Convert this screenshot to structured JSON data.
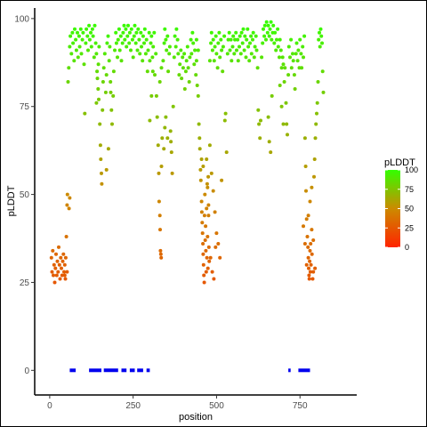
{
  "chart_data": {
    "type": "scatter",
    "title": "",
    "xlabel": "position",
    "ylabel": "pLDDT",
    "xlim": [
      -45,
      920
    ],
    "ylim": [
      -7,
      103
    ],
    "x_ticks": [
      0,
      250,
      500,
      750
    ],
    "x_tick_labels": [
      "0",
      "250",
      "500",
      "750"
    ],
    "y_ticks": [
      0,
      25,
      50,
      75,
      100
    ],
    "y_tick_labels": [
      "0",
      "25",
      "50",
      "75",
      "100"
    ],
    "grid": false,
    "legend": {
      "title": "pLDDT",
      "position": "right",
      "ticks": [
        0,
        25,
        50,
        75,
        100
      ],
      "tick_labels": [
        "0",
        "25",
        "50",
        "75",
        "100"
      ],
      "color_low": "#ff2400",
      "color_mid": "#cc8a00",
      "color_high": "#33ff00"
    },
    "points": [
      [
        5,
        32
      ],
      [
        7,
        28
      ],
      [
        9,
        34
      ],
      [
        11,
        27
      ],
      [
        13,
        30
      ],
      [
        15,
        25
      ],
      [
        17,
        29
      ],
      [
        19,
        33
      ],
      [
        21,
        27
      ],
      [
        23,
        31
      ],
      [
        25,
        28
      ],
      [
        27,
        35
      ],
      [
        29,
        30
      ],
      [
        31,
        26
      ],
      [
        33,
        32
      ],
      [
        35,
        29
      ],
      [
        37,
        27
      ],
      [
        39,
        31
      ],
      [
        41,
        33
      ],
      [
        43,
        28
      ],
      [
        45,
        30
      ],
      [
        47,
        26
      ],
      [
        50,
        38
      ],
      [
        52,
        47
      ],
      [
        53,
        50
      ],
      [
        55,
        82
      ],
      [
        57,
        86
      ],
      [
        60,
        92
      ],
      [
        62,
        95
      ],
      [
        65,
        90
      ],
      [
        68,
        96
      ],
      [
        70,
        93
      ],
      [
        73,
        88
      ],
      [
        75,
        97
      ],
      [
        78,
        94
      ],
      [
        80,
        91
      ],
      [
        83,
        96
      ],
      [
        85,
        89
      ],
      [
        88,
        95
      ],
      [
        90,
        92
      ],
      [
        93,
        97
      ],
      [
        95,
        90
      ],
      [
        98,
        94
      ],
      [
        100,
        96
      ],
      [
        103,
        87
      ],
      [
        105,
        73
      ],
      [
        108,
        93
      ],
      [
        110,
        97
      ],
      [
        113,
        95
      ],
      [
        115,
        91
      ],
      [
        118,
        98
      ],
      [
        120,
        94
      ],
      [
        123,
        96
      ],
      [
        125,
        92
      ],
      [
        128,
        97
      ],
      [
        130,
        95
      ],
      [
        133,
        89
      ],
      [
        135,
        98
      ],
      [
        138,
        93
      ],
      [
        140,
        90
      ],
      [
        142,
        85
      ],
      [
        145,
        80
      ],
      [
        147,
        77
      ],
      [
        150,
        70
      ],
      [
        152,
        64
      ],
      [
        153,
        60
      ],
      [
        155,
        56
      ],
      [
        156,
        53
      ],
      [
        158,
        74
      ],
      [
        160,
        82
      ],
      [
        162,
        86
      ],
      [
        165,
        90
      ],
      [
        168,
        79
      ],
      [
        170,
        84
      ],
      [
        172,
        93
      ],
      [
        175,
        95
      ],
      [
        178,
        88
      ],
      [
        180,
        92
      ],
      [
        182,
        82
      ],
      [
        185,
        74
      ],
      [
        187,
        70
      ],
      [
        190,
        78
      ],
      [
        192,
        85
      ],
      [
        195,
        91
      ],
      [
        198,
        96
      ],
      [
        200,
        93
      ],
      [
        203,
        89
      ],
      [
        205,
        94
      ],
      [
        208,
        97
      ],
      [
        210,
        91
      ],
      [
        213,
        95
      ],
      [
        215,
        88
      ],
      [
        218,
        93
      ],
      [
        220,
        96
      ],
      [
        223,
        98
      ],
      [
        225,
        94
      ],
      [
        228,
        97
      ],
      [
        230,
        92
      ],
      [
        233,
        95
      ],
      [
        235,
        98
      ],
      [
        238,
        93
      ],
      [
        240,
        96
      ],
      [
        243,
        91
      ],
      [
        245,
        97
      ],
      [
        248,
        94
      ],
      [
        250,
        89
      ],
      [
        253,
        95
      ],
      [
        255,
        98
      ],
      [
        258,
        93
      ],
      [
        260,
        96
      ],
      [
        263,
        91
      ],
      [
        265,
        97
      ],
      [
        268,
        94
      ],
      [
        270,
        90
      ],
      [
        273,
        96
      ],
      [
        275,
        92
      ],
      [
        278,
        88
      ],
      [
        280,
        95
      ],
      [
        283,
        93
      ],
      [
        285,
        97
      ],
      [
        288,
        90
      ],
      [
        290,
        94
      ],
      [
        293,
        85
      ],
      [
        295,
        91
      ],
      [
        298,
        96
      ],
      [
        300,
        88
      ],
      [
        303,
        93
      ],
      [
        305,
        95
      ],
      [
        308,
        89
      ],
      [
        310,
        92
      ],
      [
        313,
        96
      ],
      [
        315,
        84
      ],
      [
        318,
        90
      ],
      [
        320,
        78
      ],
      [
        322,
        72
      ],
      [
        325,
        64
      ],
      [
        327,
        56
      ],
      [
        328,
        48
      ],
      [
        330,
        44
      ],
      [
        331,
        40
      ],
      [
        332,
        34
      ],
      [
        333,
        33
      ],
      [
        334,
        32
      ],
      [
        335,
        58
      ],
      [
        337,
        66
      ],
      [
        340,
        88
      ],
      [
        343,
        93
      ],
      [
        345,
        97
      ],
      [
        348,
        94
      ],
      [
        350,
        91
      ],
      [
        353,
        95
      ],
      [
        355,
        85
      ],
      [
        358,
        90
      ],
      [
        360,
        92
      ],
      [
        362,
        68
      ],
      [
        363,
        65
      ],
      [
        365,
        62
      ],
      [
        367,
        56
      ],
      [
        370,
        75
      ],
      [
        373,
        89
      ],
      [
        375,
        95
      ],
      [
        378,
        92
      ],
      [
        380,
        97
      ],
      [
        383,
        94
      ],
      [
        385,
        90
      ],
      [
        388,
        84
      ],
      [
        390,
        87
      ],
      [
        393,
        91
      ],
      [
        395,
        83
      ],
      [
        398,
        89
      ],
      [
        400,
        86
      ],
      [
        403,
        90
      ],
      [
        405,
        80
      ],
      [
        408,
        85
      ],
      [
        410,
        88
      ],
      [
        413,
        92
      ],
      [
        415,
        86
      ],
      [
        418,
        82
      ],
      [
        420,
        89
      ],
      [
        423,
        94
      ],
      [
        425,
        90
      ],
      [
        428,
        96
      ],
      [
        430,
        93
      ],
      [
        433,
        87
      ],
      [
        435,
        91
      ],
      [
        438,
        84
      ],
      [
        440,
        88
      ],
      [
        442,
        81
      ],
      [
        445,
        78
      ],
      [
        447,
        70
      ],
      [
        449,
        66
      ],
      [
        450,
        63
      ],
      [
        452,
        57
      ],
      [
        453,
        54
      ],
      [
        455,
        48
      ],
      [
        456,
        45
      ],
      [
        457,
        42
      ],
      [
        458,
        39
      ],
      [
        459,
        36
      ],
      [
        460,
        33
      ],
      [
        461,
        30
      ],
      [
        462,
        27
      ],
      [
        463,
        25
      ],
      [
        464,
        44
      ],
      [
        465,
        50
      ],
      [
        466,
        37
      ],
      [
        467,
        41
      ],
      [
        468,
        34
      ],
      [
        469,
        28
      ],
      [
        470,
        46
      ],
      [
        471,
        32
      ],
      [
        472,
        53
      ],
      [
        473,
        38
      ],
      [
        474,
        29
      ],
      [
        475,
        55
      ],
      [
        476,
        47
      ],
      [
        477,
        35
      ],
      [
        478,
        31
      ],
      [
        480,
        88
      ],
      [
        483,
        93
      ],
      [
        485,
        96
      ],
      [
        488,
        91
      ],
      [
        490,
        94
      ],
      [
        493,
        88
      ],
      [
        495,
        92
      ],
      [
        498,
        95
      ],
      [
        500,
        90
      ],
      [
        503,
        86
      ],
      [
        505,
        93
      ],
      [
        508,
        96
      ],
      [
        510,
        89
      ],
      [
        513,
        94
      ],
      [
        515,
        91
      ],
      [
        518,
        85
      ],
      [
        520,
        92
      ],
      [
        523,
        95
      ],
      [
        525,
        71
      ],
      [
        527,
        73
      ],
      [
        530,
        62
      ],
      [
        533,
        90
      ],
      [
        535,
        94
      ],
      [
        538,
        96
      ],
      [
        540,
        91
      ],
      [
        543,
        94
      ],
      [
        545,
        88
      ],
      [
        548,
        92
      ],
      [
        550,
        95
      ],
      [
        553,
        90
      ],
      [
        555,
        94
      ],
      [
        558,
        96
      ],
      [
        560,
        91
      ],
      [
        563,
        94
      ],
      [
        565,
        88
      ],
      [
        568,
        92
      ],
      [
        570,
        95
      ],
      [
        573,
        90
      ],
      [
        575,
        96
      ],
      [
        578,
        93
      ],
      [
        580,
        97
      ],
      [
        583,
        91
      ],
      [
        585,
        95
      ],
      [
        588,
        89
      ],
      [
        590,
        94
      ],
      [
        593,
        97
      ],
      [
        595,
        92
      ],
      [
        598,
        88
      ],
      [
        600,
        93
      ],
      [
        603,
        95
      ],
      [
        605,
        90
      ],
      [
        608,
        94
      ],
      [
        610,
        96
      ],
      [
        613,
        89
      ],
      [
        615,
        92
      ],
      [
        618,
        95
      ],
      [
        620,
        91
      ],
      [
        623,
        86
      ],
      [
        625,
        74
      ],
      [
        627,
        70
      ],
      [
        630,
        66
      ],
      [
        632,
        71
      ],
      [
        635,
        89
      ],
      [
        638,
        93
      ],
      [
        640,
        97
      ],
      [
        643,
        95
      ],
      [
        645,
        98
      ],
      [
        648,
        94
      ],
      [
        650,
        99
      ],
      [
        653,
        96
      ],
      [
        655,
        98
      ],
      [
        658,
        95
      ],
      [
        660,
        97
      ],
      [
        663,
        99
      ],
      [
        665,
        94
      ],
      [
        668,
        96
      ],
      [
        670,
        98
      ],
      [
        673,
        93
      ],
      [
        675,
        96
      ],
      [
        678,
        91
      ],
      [
        680,
        94
      ],
      [
        683,
        97
      ],
      [
        685,
        92
      ],
      [
        688,
        89
      ],
      [
        690,
        94
      ],
      [
        693,
        91
      ],
      [
        695,
        86
      ],
      [
        698,
        89
      ],
      [
        700,
        87
      ],
      [
        703,
        82
      ],
      [
        705,
        86
      ],
      [
        708,
        76
      ],
      [
        710,
        70
      ],
      [
        712,
        67
      ],
      [
        715,
        84
      ],
      [
        717,
        92
      ],
      [
        720,
        89
      ],
      [
        723,
        94
      ],
      [
        725,
        86
      ],
      [
        728,
        90
      ],
      [
        730,
        88
      ],
      [
        733,
        84
      ],
      [
        735,
        80
      ],
      [
        738,
        90
      ],
      [
        740,
        93
      ],
      [
        743,
        88
      ],
      [
        745,
        91
      ],
      [
        748,
        86
      ],
      [
        750,
        94
      ],
      [
        753,
        90
      ],
      [
        755,
        86
      ],
      [
        758,
        92
      ],
      [
        760,
        89
      ],
      [
        763,
        95
      ],
      [
        765,
        66
      ],
      [
        767,
        58
      ],
      [
        768,
        51
      ],
      [
        770,
        43
      ],
      [
        772,
        38
      ],
      [
        774,
        35
      ],
      [
        775,
        32
      ],
      [
        776,
        29
      ],
      [
        777,
        27
      ],
      [
        778,
        26
      ],
      [
        779,
        31
      ],
      [
        780,
        34
      ],
      [
        781,
        28
      ],
      [
        782,
        36
      ],
      [
        783,
        30
      ],
      [
        785,
        40
      ],
      [
        786,
        33
      ],
      [
        788,
        26
      ],
      [
        790,
        28
      ],
      [
        792,
        55
      ],
      [
        794,
        60
      ],
      [
        796,
        66
      ],
      [
        798,
        70
      ],
      [
        800,
        73
      ],
      [
        802,
        76
      ],
      [
        804,
        82
      ],
      [
        806,
        94
      ],
      [
        808,
        96
      ],
      [
        810,
        92
      ],
      [
        812,
        97
      ],
      [
        814,
        95
      ],
      [
        816,
        93
      ],
      [
        818,
        85
      ],
      [
        820,
        79
      ],
      [
        52,
        28
      ],
      [
        48,
        32
      ],
      [
        45,
        27
      ],
      [
        60,
        49
      ],
      [
        58,
        46
      ],
      [
        140,
        76
      ],
      [
        143,
        83
      ],
      [
        146,
        87
      ],
      [
        148,
        92
      ],
      [
        170,
        57
      ],
      [
        176,
        63
      ],
      [
        183,
        79
      ],
      [
        300,
        71
      ],
      [
        305,
        78
      ],
      [
        309,
        85
      ],
      [
        330,
        82
      ],
      [
        335,
        86
      ],
      [
        342,
        63
      ],
      [
        345,
        69
      ],
      [
        348,
        72
      ],
      [
        353,
        66
      ],
      [
        440,
        94
      ],
      [
        445,
        91
      ],
      [
        455,
        60
      ],
      [
        460,
        58
      ],
      [
        480,
        64
      ],
      [
        485,
        56
      ],
      [
        490,
        51
      ],
      [
        495,
        45
      ],
      [
        500,
        39
      ],
      [
        505,
        36
      ],
      [
        510,
        32
      ],
      [
        515,
        54
      ],
      [
        470,
        60
      ],
      [
        473,
        52
      ],
      [
        476,
        44
      ],
      [
        482,
        32
      ],
      [
        487,
        28
      ],
      [
        492,
        26
      ],
      [
        497,
        35
      ],
      [
        655,
        72
      ],
      [
        658,
        65
      ],
      [
        662,
        62
      ],
      [
        666,
        78
      ],
      [
        690,
        81
      ],
      [
        695,
        75
      ],
      [
        700,
        70
      ],
      [
        760,
        41
      ],
      [
        765,
        36
      ],
      [
        770,
        30
      ],
      [
        775,
        44
      ],
      [
        780,
        48
      ],
      [
        785,
        52
      ],
      [
        790,
        37
      ],
      [
        795,
        29
      ]
    ],
    "domain_segments": [
      [
        60,
        78
      ],
      [
        118,
        155
      ],
      [
        162,
        205
      ],
      [
        215,
        230
      ],
      [
        240,
        255
      ],
      [
        262,
        280
      ],
      [
        290,
        300
      ],
      [
        715,
        722
      ],
      [
        745,
        780
      ]
    ],
    "domain_color": "#0000ee"
  }
}
